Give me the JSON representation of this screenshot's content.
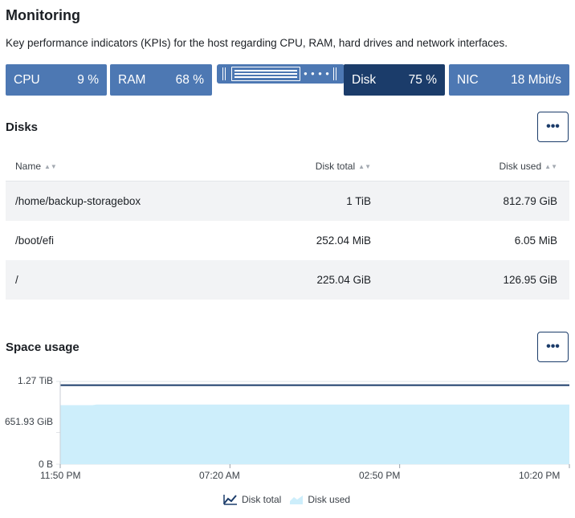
{
  "page": {
    "title": "Monitoring",
    "description": "Key performance indicators (KPIs) for the host regarding CPU, RAM, hard drives and network interfaces."
  },
  "kpis": [
    {
      "label": "CPU",
      "value": "9 %"
    },
    {
      "label": "RAM",
      "value": "68 %"
    },
    {
      "label": "Disk",
      "value": "75 %"
    },
    {
      "label": "NIC",
      "value": "18 Mbit/s"
    }
  ],
  "colors": {
    "kpi_default": "#4d78b3",
    "kpi_active": "#1b3c6a",
    "disk_total_line": "#1b3c6a",
    "disk_used_fill": "#cdeefb"
  },
  "disks": {
    "title": "Disks",
    "more_label": "•••",
    "columns": [
      "Name",
      "Disk total",
      "Disk used"
    ],
    "rows": [
      {
        "name": "/home/backup-storagebox",
        "total": "1 TiB",
        "used": "812.79 GiB"
      },
      {
        "name": "/boot/efi",
        "total": "252.04 MiB",
        "used": "6.05 MiB"
      },
      {
        "name": "/",
        "total": "225.04 GiB",
        "used": "126.95 GiB"
      }
    ]
  },
  "space_usage": {
    "title": "Space usage",
    "more_label": "•••"
  },
  "chart_data": {
    "type": "area",
    "x": [
      "11:50 PM",
      "07:20 AM",
      "02:50 PM",
      "10:20 PM"
    ],
    "y_ticks": [
      "1.27 TiB",
      "651.93 GiB",
      "0 B"
    ],
    "series": [
      {
        "name": "Disk total",
        "kind": "line",
        "values_gib": [
          1245,
          1245,
          1245,
          1245
        ]
      },
      {
        "name": "Disk used",
        "kind": "area",
        "values_gib": [
          930,
          940,
          940,
          940
        ]
      }
    ],
    "ylim_gib": [
      0,
      1303.86
    ],
    "legend_position": "bottom-center"
  }
}
